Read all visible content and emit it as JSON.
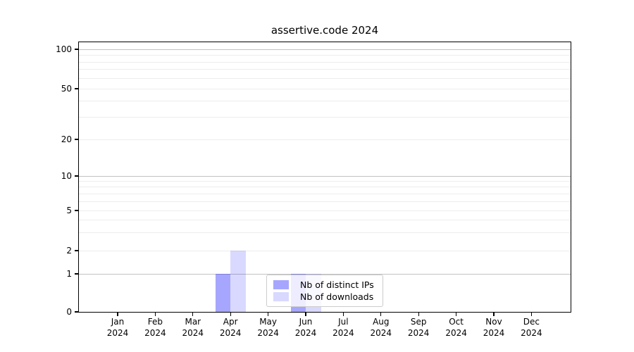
{
  "chart_data": {
    "type": "bar",
    "title": "assertive.code 2024",
    "x": [
      {
        "month": "Jan",
        "year": "2024"
      },
      {
        "month": "Feb",
        "year": "2024"
      },
      {
        "month": "Mar",
        "year": "2024"
      },
      {
        "month": "Apr",
        "year": "2024"
      },
      {
        "month": "May",
        "year": "2024"
      },
      {
        "month": "Jun",
        "year": "2024"
      },
      {
        "month": "Jul",
        "year": "2024"
      },
      {
        "month": "Aug",
        "year": "2024"
      },
      {
        "month": "Sep",
        "year": "2024"
      },
      {
        "month": "Oct",
        "year": "2024"
      },
      {
        "month": "Nov",
        "year": "2024"
      },
      {
        "month": "Dec",
        "year": "2024"
      }
    ],
    "series": [
      {
        "name": "Nb of distinct IPs",
        "color": "rgba(0,0,255,0.35)",
        "values": [
          0,
          0,
          0,
          1,
          0,
          1,
          0,
          0,
          0,
          0,
          0,
          0
        ]
      },
      {
        "name": "Nb of downloads",
        "color": "rgba(0,0,255,0.15)",
        "values": [
          0,
          0,
          0,
          2,
          0,
          1,
          0,
          0,
          0,
          0,
          0,
          0
        ]
      }
    ],
    "y_axis": {
      "scale": "symlog-like",
      "range": [
        0,
        100
      ],
      "ticks": [
        0,
        1,
        2,
        5,
        10,
        20,
        50,
        100
      ],
      "major_gridlines": [
        1,
        10,
        100
      ],
      "minor_gridlines": [
        2,
        3,
        4,
        5,
        6,
        7,
        8,
        9,
        20,
        30,
        40,
        50,
        60,
        70,
        80,
        90
      ]
    },
    "legend": {
      "position": "lower center"
    },
    "colors": {
      "major_grid": "#c2c2c2",
      "minor_grid": "#ededed",
      "spine": "#000000",
      "text": "#000000",
      "legend_border": "#cccccc",
      "legend_bg": "rgba(255,255,255,0.8)"
    }
  }
}
